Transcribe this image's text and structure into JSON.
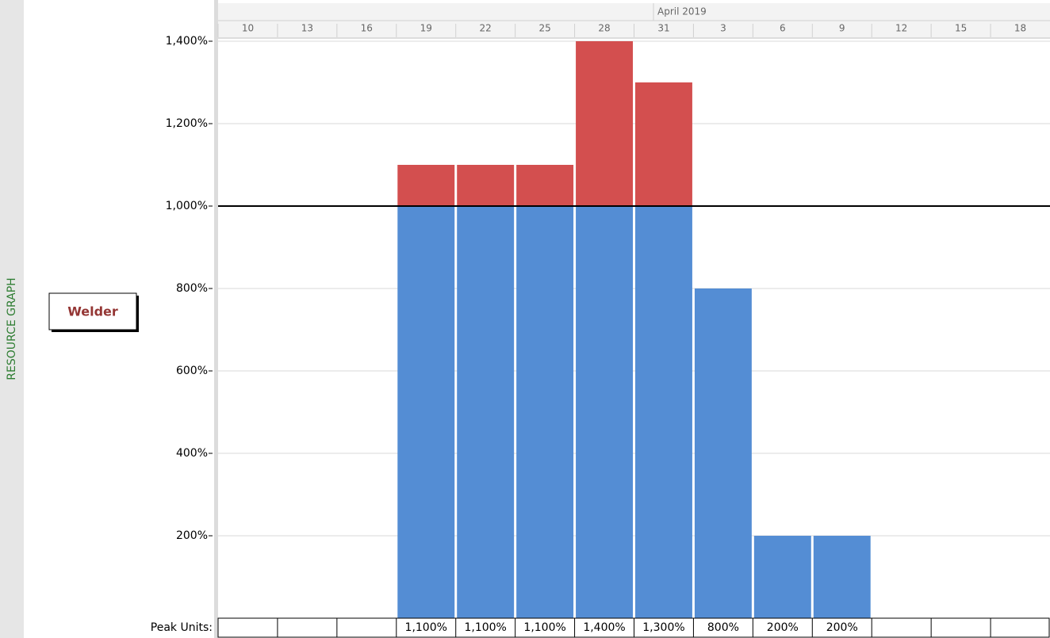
{
  "chart_data": {
    "type": "bar",
    "stacked": true,
    "side_title": "RESOURCE GRAPH",
    "resource": "Welder",
    "period": "April 2019",
    "categories": [
      "10",
      "13",
      "16",
      "19",
      "22",
      "25",
      "28",
      "31",
      "3",
      "6",
      "9",
      "12",
      "15",
      "18"
    ],
    "series": [
      {
        "color": "#548dd4",
        "values": [
          null,
          null,
          null,
          1000,
          1000,
          1000,
          1000,
          1000,
          800,
          200,
          200,
          null,
          null,
          null
        ]
      },
      {
        "color": "#d34f4f",
        "values": [
          null,
          null,
          null,
          100,
          100,
          100,
          400,
          300,
          null,
          null,
          null,
          null,
          null,
          null
        ]
      }
    ],
    "max_units": 1000,
    "ylim": [
      0,
      1400
    ],
    "yticks": [
      {
        "value": 200,
        "label": "200%"
      },
      {
        "value": 400,
        "label": "400%"
      },
      {
        "value": 600,
        "label": "600%"
      },
      {
        "value": 800,
        "label": "800%"
      },
      {
        "value": 1000,
        "label": "1,000%"
      },
      {
        "value": 1200,
        "label": "1,200%"
      },
      {
        "value": 1400,
        "label": "1,400%"
      }
    ],
    "grid": true,
    "peak_label": "Peak Units:",
    "peak_units": [
      null,
      null,
      null,
      "1,100%",
      "1,100%",
      "1,100%",
      "1,400%",
      "1,300%",
      "800%",
      "200%",
      "200%",
      null,
      null,
      null
    ]
  }
}
